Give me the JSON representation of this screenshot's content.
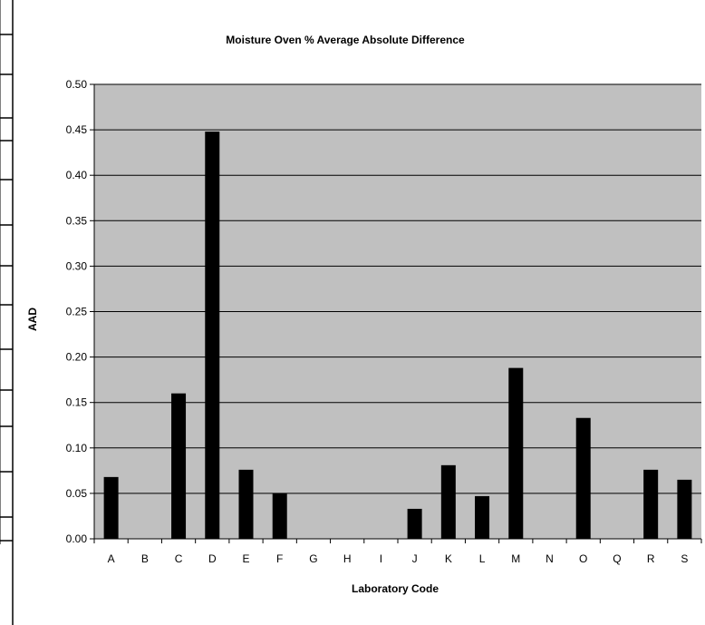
{
  "chart_data": {
    "type": "bar",
    "title": "Moisture Oven % Average Absolute Difference",
    "xlabel": "Laboratory Code",
    "ylabel": "AAD",
    "categories": [
      "A",
      "B",
      "C",
      "D",
      "E",
      "F",
      "G",
      "H",
      "I",
      "J",
      "K",
      "L",
      "M",
      "N",
      "O",
      "Q",
      "R",
      "S"
    ],
    "values": [
      0.068,
      null,
      0.16,
      0.448,
      0.076,
      0.05,
      null,
      null,
      null,
      0.033,
      0.081,
      0.047,
      0.188,
      null,
      0.133,
      null,
      0.076,
      0.065
    ],
    "ylim": [
      0,
      0.5
    ],
    "yticks": [
      0.0,
      0.05,
      0.1,
      0.15,
      0.2,
      0.25,
      0.3,
      0.35,
      0.4,
      0.45,
      0.5
    ],
    "ytick_labels": [
      "0.00",
      "0.05",
      "0.10",
      "0.15",
      "0.20",
      "0.25",
      "0.30",
      "0.35",
      "0.40",
      "0.45",
      "0.50"
    ],
    "grid": true,
    "legend": "none",
    "colors": {
      "bar": "#000000",
      "plot_background": "#c0c0c0",
      "gridline": "#000000"
    }
  }
}
